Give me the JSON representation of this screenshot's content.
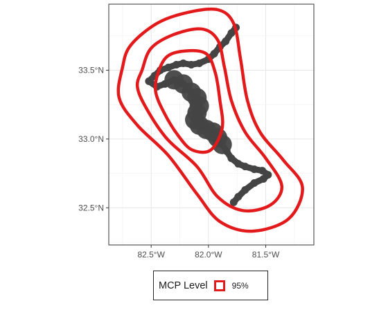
{
  "chart_data": {
    "type": "scatter",
    "xlabel": "",
    "ylabel": "",
    "xlim": [
      -82.87,
      -81.08
    ],
    "ylim": [
      32.23,
      33.98
    ],
    "x_ticks": [
      -82.5,
      -82.0,
      -81.5
    ],
    "x_tick_labels": [
      "82.5°W",
      "82.0°W",
      "81.5°W"
    ],
    "y_ticks": [
      32.5,
      33.0,
      33.5
    ],
    "y_tick_labels": [
      "32.5°N",
      "33.0°N",
      "33.5°N"
    ],
    "grid": true,
    "theme": "bw",
    "track_color": "#444444",
    "contour_color": "#e31a1c",
    "track": [
      [
        -81.76,
        33.81
      ],
      [
        -81.8,
        33.77
      ],
      [
        -81.85,
        33.71
      ],
      [
        -81.9,
        33.67
      ],
      [
        -81.95,
        33.62
      ],
      [
        -82.0,
        33.58
      ],
      [
        -82.08,
        33.55
      ],
      [
        -82.15,
        33.54
      ],
      [
        -82.22,
        33.55
      ],
      [
        -82.28,
        33.54
      ],
      [
        -82.35,
        33.52
      ],
      [
        -82.42,
        33.5
      ],
      [
        -82.47,
        33.46
      ],
      [
        -82.52,
        33.42
      ],
      [
        -82.45,
        33.38
      ],
      [
        -82.38,
        33.4
      ],
      [
        -82.3,
        33.43
      ],
      [
        -82.22,
        33.4
      ],
      [
        -82.15,
        33.34
      ],
      [
        -82.1,
        33.3
      ],
      [
        -82.08,
        33.24
      ],
      [
        -82.1,
        33.19
      ],
      [
        -82.12,
        33.14
      ],
      [
        -82.08,
        33.1
      ],
      [
        -82.02,
        33.07
      ],
      [
        -81.96,
        33.05
      ],
      [
        -81.92,
        33.01
      ],
      [
        -81.88,
        32.96
      ],
      [
        -81.84,
        32.91
      ],
      [
        -81.8,
        32.86
      ],
      [
        -81.74,
        32.82
      ],
      [
        -81.68,
        32.8
      ],
      [
        -81.6,
        32.78
      ],
      [
        -81.53,
        32.77
      ],
      [
        -81.48,
        32.74
      ],
      [
        -81.52,
        32.71
      ],
      [
        -81.6,
        32.68
      ],
      [
        -81.68,
        32.63
      ],
      [
        -81.74,
        32.58
      ],
      [
        -81.78,
        32.54
      ]
    ],
    "mcp_levels": [
      {
        "label": "95%",
        "contours": [
          [
            [
              -82.75,
              33.52
            ],
            [
              -82.68,
              33.68
            ],
            [
              -82.45,
              33.84
            ],
            [
              -82.18,
              33.92
            ],
            [
              -81.92,
              33.94
            ],
            [
              -81.78,
              33.84
            ],
            [
              -81.72,
              33.58
            ],
            [
              -81.66,
              33.28
            ],
            [
              -81.55,
              33.05
            ],
            [
              -81.35,
              32.85
            ],
            [
              -81.18,
              32.65
            ],
            [
              -81.3,
              32.42
            ],
            [
              -81.62,
              32.33
            ],
            [
              -81.9,
              32.4
            ],
            [
              -82.1,
              32.6
            ],
            [
              -82.35,
              32.88
            ],
            [
              -82.62,
              33.1
            ],
            [
              -82.78,
              33.3
            ]
          ],
          [
            [
              -82.58,
              33.5
            ],
            [
              -82.5,
              33.66
            ],
            [
              -82.3,
              33.76
            ],
            [
              -82.06,
              33.8
            ],
            [
              -81.92,
              33.72
            ],
            [
              -81.86,
              33.52
            ],
            [
              -81.8,
              33.28
            ],
            [
              -81.68,
              33.05
            ],
            [
              -81.5,
              32.86
            ],
            [
              -81.36,
              32.66
            ],
            [
              -81.46,
              32.52
            ],
            [
              -81.7,
              32.48
            ],
            [
              -81.92,
              32.58
            ],
            [
              -82.1,
              32.8
            ],
            [
              -82.36,
              33.0
            ],
            [
              -82.54,
              33.22
            ],
            [
              -82.62,
              33.38
            ]
          ],
          [
            [
              -82.44,
              33.48
            ],
            [
              -82.36,
              33.6
            ],
            [
              -82.2,
              33.64
            ],
            [
              -82.02,
              33.62
            ],
            [
              -81.94,
              33.48
            ],
            [
              -81.9,
              33.28
            ],
            [
              -81.88,
              33.08
            ],
            [
              -81.98,
              32.92
            ],
            [
              -82.14,
              32.92
            ],
            [
              -82.26,
              33.02
            ],
            [
              -82.38,
              33.18
            ],
            [
              -82.46,
              33.34
            ]
          ]
        ]
      }
    ],
    "legend": {
      "title": "MCP Level",
      "position": "bottom",
      "entries": [
        "95%"
      ]
    }
  }
}
